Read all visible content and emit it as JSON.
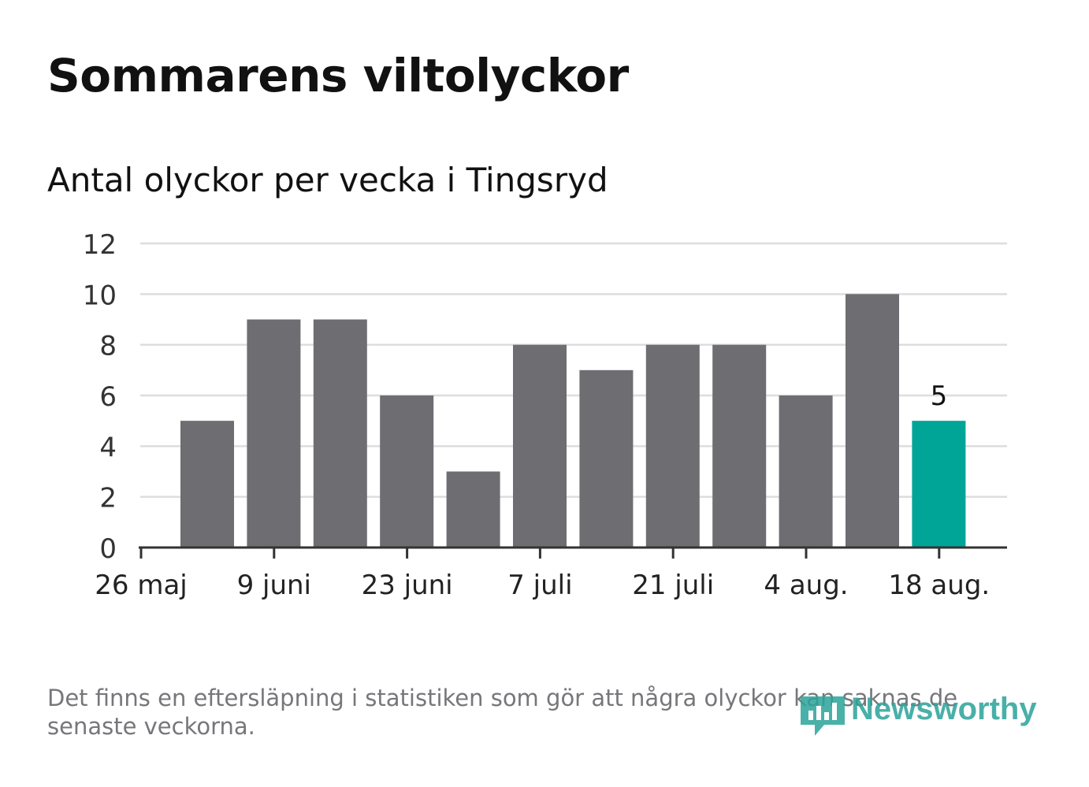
{
  "title": "Sommarens viltolyckor",
  "subtitle": "Antal olyckor per vecka i Tingsryd",
  "footnote": "Det finns en eftersläpning i statistiken som gör att några olyckor kan saknas de senaste veckorna.",
  "logo": {
    "text": "Newsworthy",
    "icon": "newsworthy-logo-icon"
  },
  "colors": {
    "bar": "#6e6d72",
    "highlight": "#00a598",
    "grid": "#dddddd",
    "axis": "#333333",
    "logo": "#2aa39a"
  },
  "chart_data": {
    "type": "bar",
    "title": "Sommarens viltolyckor",
    "subtitle": "Antal olyckor per vecka i Tingsryd",
    "values": [
      5,
      9,
      9,
      6,
      3,
      8,
      7,
      8,
      8,
      6,
      10,
      5
    ],
    "highlight_index": 11,
    "data_labels": [
      {
        "index": 11,
        "text": "5"
      }
    ],
    "yticks": [
      "0",
      "2",
      "4",
      "6",
      "8",
      "10",
      "12"
    ],
    "ylim": [
      0,
      12
    ],
    "xticks": [
      "26 maj",
      "9 juni",
      "23 juni",
      "7 juli",
      "21 juli",
      "4 aug.",
      "18 aug."
    ],
    "grid": true,
    "legend": "none"
  }
}
